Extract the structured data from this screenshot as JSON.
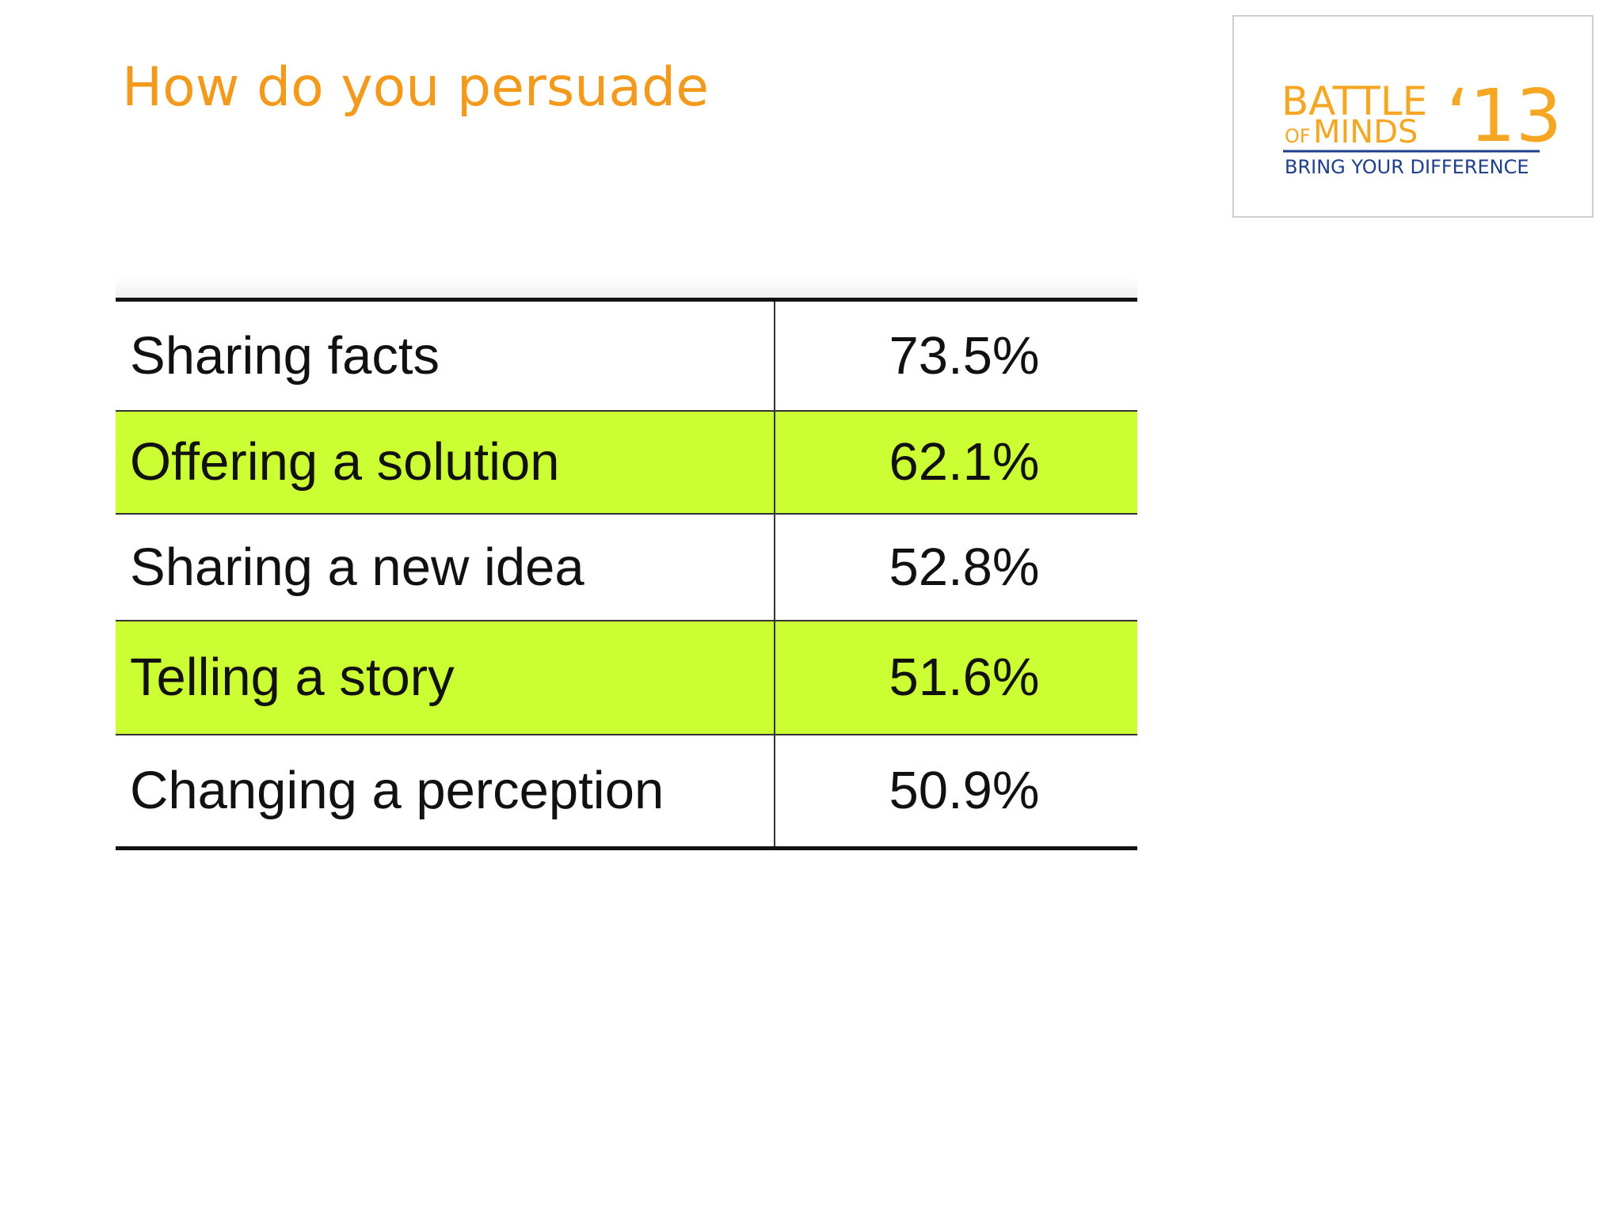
{
  "slide": {
    "title": "How do you persuade"
  },
  "logo": {
    "line1": "BATTLE",
    "line2_prefix": "OF",
    "line2": "MINDS",
    "year": "‘13",
    "tagline": "BRING YOUR DIFFERENCE",
    "colors": {
      "orange": "#f5a623",
      "blue": "#1f3f8a"
    }
  },
  "table": {
    "highlight_color": "#ccff33",
    "rows": [
      {
        "label": "Sharing facts",
        "value": "73.5%",
        "highlighted": false
      },
      {
        "label": "Offering a solution",
        "value": "62.1%",
        "highlighted": true
      },
      {
        "label": "Sharing a new idea",
        "value": "52.8%",
        "highlighted": false
      },
      {
        "label": "Telling a story",
        "value": "51.6%",
        "highlighted": true
      },
      {
        "label": "Changing a perception",
        "value": "50.9%",
        "highlighted": false
      }
    ]
  }
}
